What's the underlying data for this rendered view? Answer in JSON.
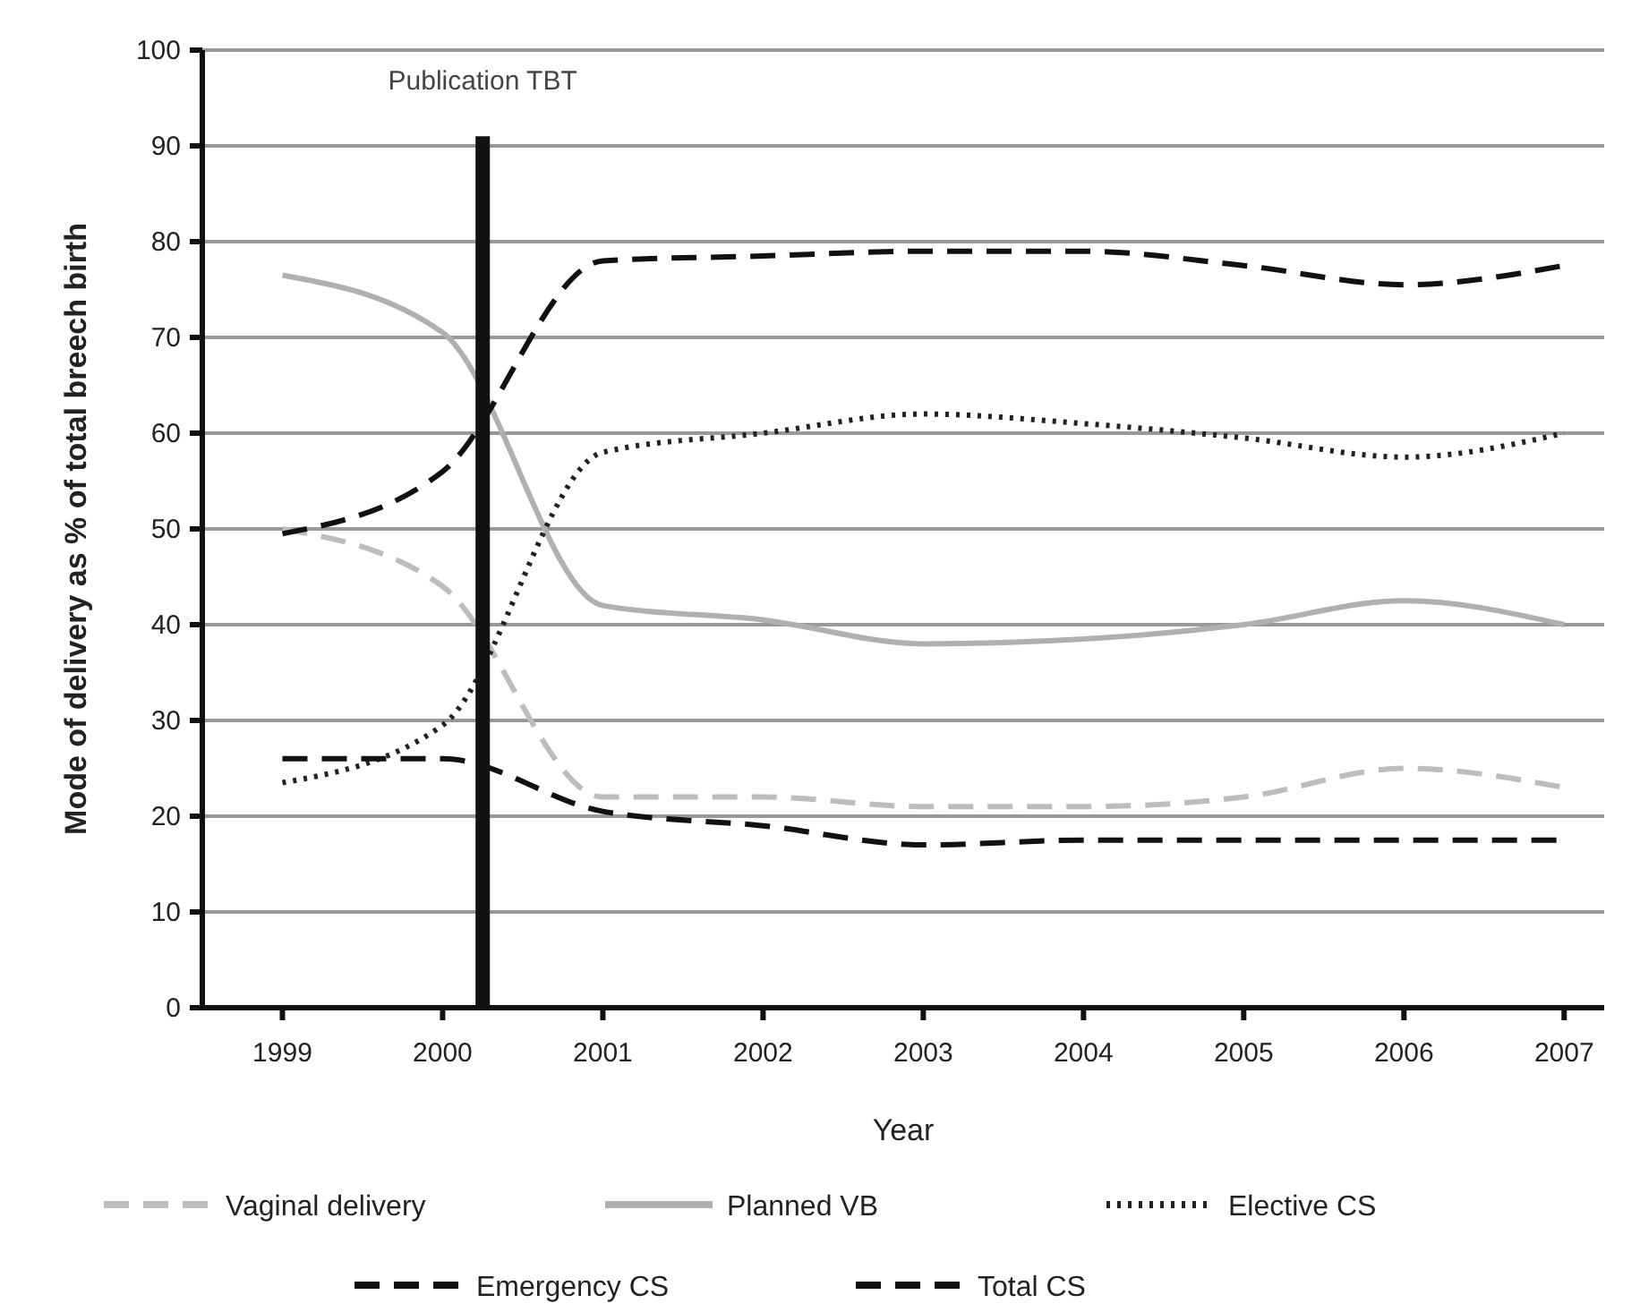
{
  "chart_data": {
    "type": "line",
    "xlabel": "Year",
    "ylabel": "Mode of delivery as % of total breech birth",
    "x": [
      1999,
      2000,
      2001,
      2002,
      2003,
      2004,
      2005,
      2006,
      2007
    ],
    "xlim": [
      1998.5,
      2007.25
    ],
    "xticks": [
      1999,
      2000,
      2001,
      2002,
      2003,
      2004,
      2005,
      2006,
      2007
    ],
    "ylim": [
      0,
      100
    ],
    "yticks": [
      0,
      10,
      20,
      30,
      40,
      50,
      60,
      70,
      80,
      90,
      100
    ],
    "grid": "y",
    "legend": "bottom",
    "marker": "none",
    "series": [
      {
        "name": "Vaginal delivery",
        "color": "#bdbdbd",
        "line_style": "dashed",
        "values": [
          50,
          44,
          22,
          22,
          21,
          21,
          22,
          25,
          23
        ]
      },
      {
        "name": "Planned VB",
        "color": "#b0b0b0",
        "line_style": "solid",
        "values": [
          76.5,
          70.5,
          42,
          40.5,
          38,
          38.5,
          40,
          42.5,
          40
        ]
      },
      {
        "name": "Elective CS",
        "color": "#222222",
        "line_style": "dotted",
        "values": [
          23.5,
          29.5,
          58,
          60,
          62,
          61,
          59.5,
          57.5,
          60
        ]
      },
      {
        "name": "Emergency CS",
        "color": "#111111",
        "line_style": "dashed",
        "values": [
          26,
          26,
          20.5,
          19,
          17,
          17.5,
          17.5,
          17.5,
          17.5
        ]
      },
      {
        "name": "Total CS",
        "color": "#111111",
        "line_style": "dashed",
        "values": [
          49.5,
          56,
          78,
          78.5,
          79,
          79,
          77.5,
          75.5,
          77.5
        ]
      }
    ],
    "ref_lines": [
      {
        "axis": "x",
        "value": 2000.25,
        "label": "Publication TBT",
        "color": "#111111"
      }
    ]
  }
}
